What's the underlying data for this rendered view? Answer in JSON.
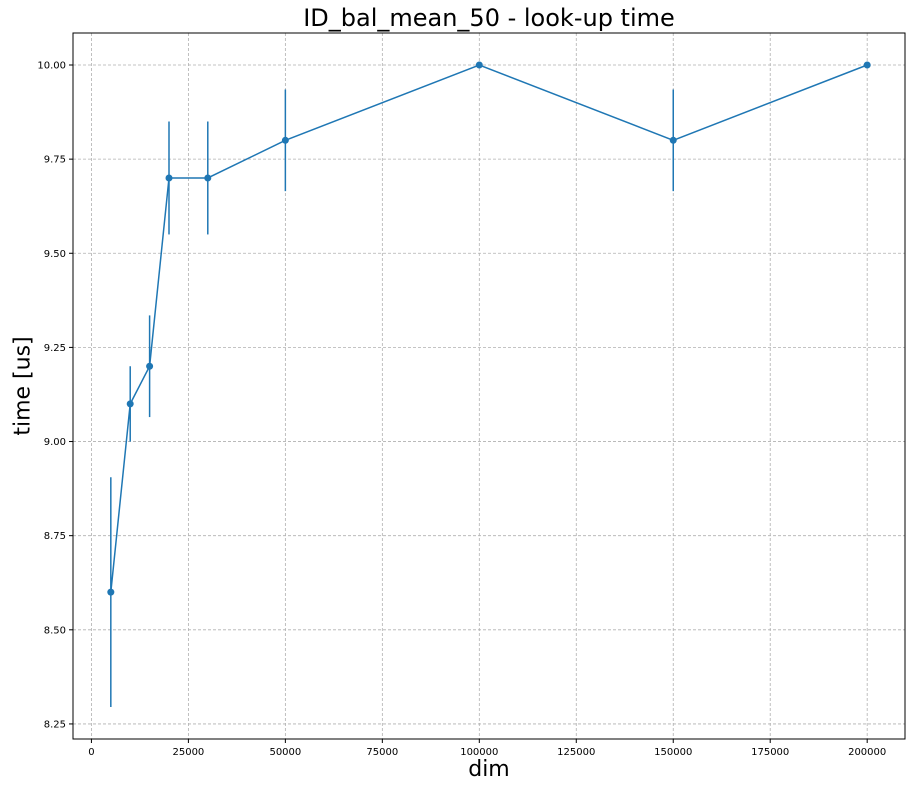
{
  "chart_data": {
    "type": "line",
    "title": "ID_bal_mean_50 - look-up time",
    "xlabel": "dim",
    "ylabel": "time [us]",
    "xlim": [
      -4750,
      209750
    ],
    "ylim": [
      8.21,
      10.085
    ],
    "grid": true,
    "x_ticks": [
      0,
      25000,
      50000,
      75000,
      100000,
      125000,
      150000,
      175000,
      200000
    ],
    "y_ticks": [
      8.25,
      8.5,
      8.75,
      9.0,
      9.25,
      9.5,
      9.75,
      10.0
    ],
    "x_tick_labels": [
      "0",
      "25000",
      "50000",
      "75000",
      "100000",
      "125000",
      "150000",
      "175000",
      "200000"
    ],
    "y_tick_labels": [
      "8.25",
      "8.50",
      "8.75",
      "9.00",
      "9.25",
      "9.50",
      "9.75",
      "10.00"
    ],
    "series": [
      {
        "color": "#1f77b4",
        "x": [
          5000,
          10000,
          15000,
          20000,
          30000,
          50000,
          100000,
          150000,
          200000
        ],
        "y": [
          8.6,
          9.1,
          9.2,
          9.7,
          9.7,
          9.8,
          10.0,
          9.8,
          10.0
        ],
        "yerr": [
          0.305,
          0.1,
          0.135,
          0.15,
          0.15,
          0.135,
          0.0,
          0.135,
          0.0
        ]
      }
    ]
  }
}
